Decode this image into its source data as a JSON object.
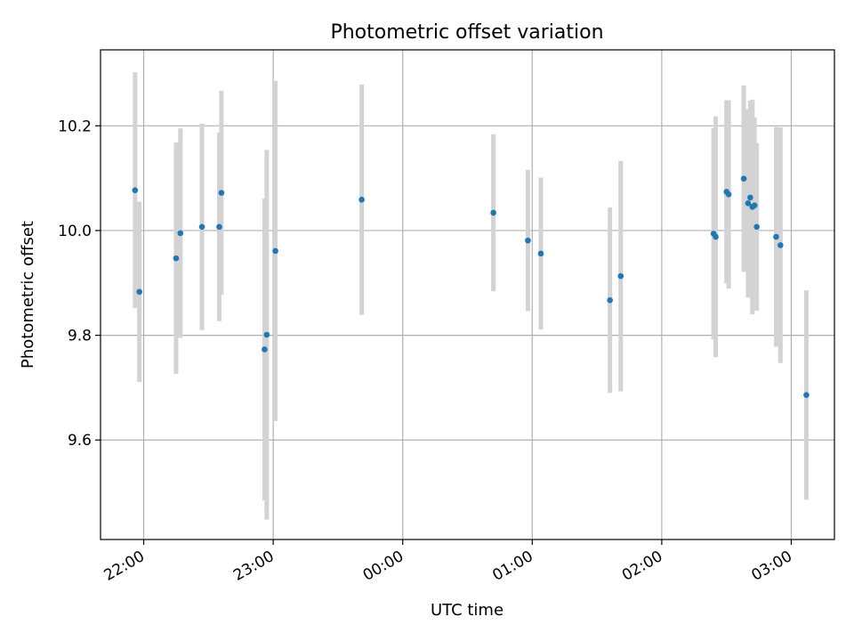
{
  "chart_data": {
    "type": "scatter",
    "title": "Photometric offset variation",
    "xlabel": "UTC time",
    "ylabel": "Photometric offset",
    "x_tick_labels": [
      "22:00",
      "23:00",
      "00:00",
      "01:00",
      "02:00",
      "03:00"
    ],
    "y_tick_labels": [
      "9.6",
      "9.8",
      "10.0",
      "10.2"
    ],
    "y_ticks": [
      9.6,
      9.8,
      10.0,
      10.2
    ],
    "ylim": [
      9.41,
      10.345
    ],
    "xlim": [
      "21:40",
      "03:20"
    ],
    "grid": true,
    "colors": {
      "points": "#1f77b4",
      "errorbars": "#d3d3d3",
      "grid": "#b0b0b0"
    },
    "series": [
      {
        "points": [
          {
            "time": "21:56",
            "y": 10.077,
            "yerr": 0.225
          },
          {
            "time": "21:58",
            "y": 9.883,
            "yerr": 0.172
          },
          {
            "time": "22:15",
            "y": 9.947,
            "yerr": 0.221
          },
          {
            "time": "22:17",
            "y": 9.995,
            "yerr": 0.2
          },
          {
            "time": "22:27",
            "y": 10.007,
            "yerr": 0.197
          },
          {
            "time": "22:35",
            "y": 10.007,
            "yerr": 0.18
          },
          {
            "time": "22:36",
            "y": 10.072,
            "yerr": 0.195
          },
          {
            "time": "22:56",
            "y": 9.773,
            "yerr": 0.288
          },
          {
            "time": "22:57",
            "y": 9.801,
            "yerr": 0.353
          },
          {
            "time": "23:01",
            "y": 9.961,
            "yerr": 0.325
          },
          {
            "time": "23:41",
            "y": 10.059,
            "yerr": 0.22
          },
          {
            "time": "00:42",
            "y": 10.034,
            "yerr": 0.15
          },
          {
            "time": "00:58",
            "y": 9.981,
            "yerr": 0.135
          },
          {
            "time": "01:04",
            "y": 9.956,
            "yerr": 0.145
          },
          {
            "time": "01:36",
            "y": 9.867,
            "yerr": 0.177
          },
          {
            "time": "01:41",
            "y": 9.913,
            "yerr": 0.22
          },
          {
            "time": "02:24",
            "y": 9.994,
            "yerr": 0.202
          },
          {
            "time": "02:25",
            "y": 9.988,
            "yerr": 0.23
          },
          {
            "time": "02:30",
            "y": 10.074,
            "yerr": 0.175
          },
          {
            "time": "02:31",
            "y": 10.069,
            "yerr": 0.18
          },
          {
            "time": "02:38",
            "y": 10.099,
            "yerr": 0.178
          },
          {
            "time": "02:40",
            "y": 10.052,
            "yerr": 0.18
          },
          {
            "time": "02:41",
            "y": 10.063,
            "yerr": 0.185
          },
          {
            "time": "02:42",
            "y": 10.045,
            "yerr": 0.205
          },
          {
            "time": "02:43",
            "y": 10.048,
            "yerr": 0.168
          },
          {
            "time": "02:44",
            "y": 10.007,
            "yerr": 0.16
          },
          {
            "time": "02:53",
            "y": 9.988,
            "yerr": 0.21
          },
          {
            "time": "02:55",
            "y": 9.972,
            "yerr": 0.225
          },
          {
            "time": "03:07",
            "y": 9.686,
            "yerr": 0.2
          }
        ]
      }
    ]
  }
}
